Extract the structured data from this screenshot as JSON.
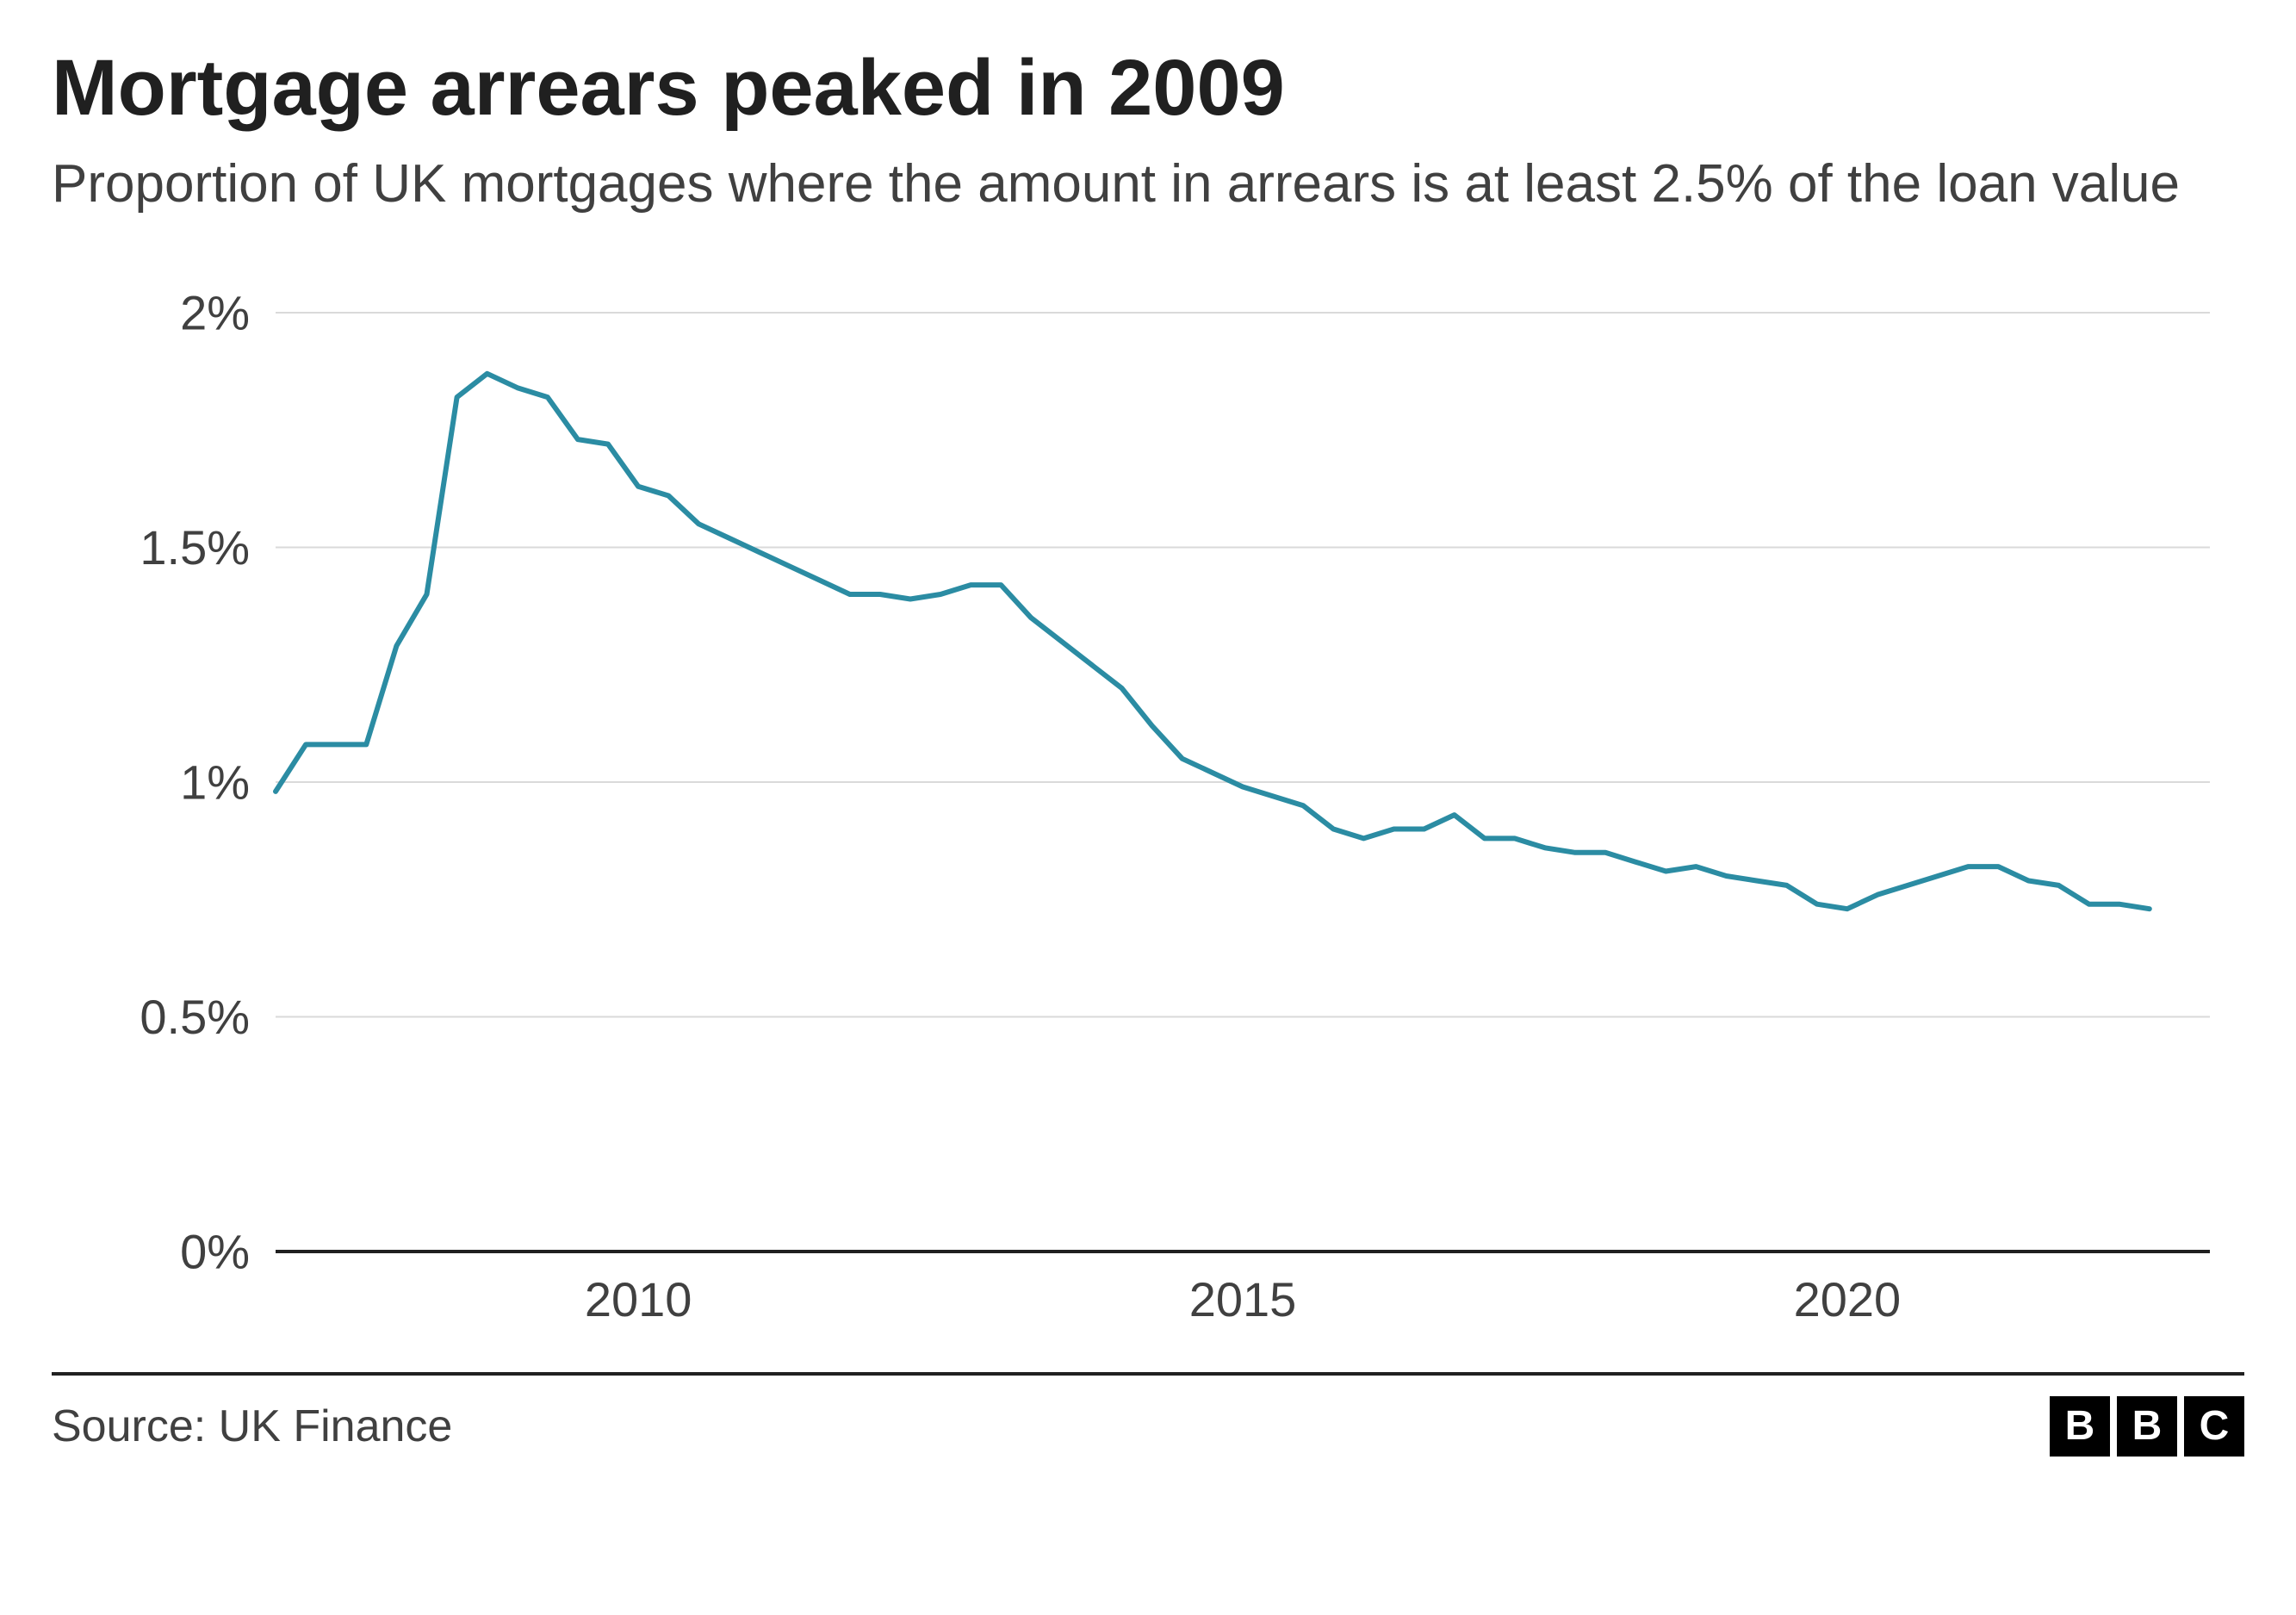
{
  "title": "Mortgage arrears peaked in 2009",
  "subtitle": "Proportion of UK mortgages where the amount in arrears is at least 2.5% of the loan value",
  "source": "Source: UK Finance",
  "logo_letters": [
    "B",
    "B",
    "C"
  ],
  "chart": {
    "type": "line",
    "background_color": "#ffffff",
    "grid_color": "#dadada",
    "axis_color": "#202020",
    "line_color": "#2b8ca3",
    "tick_label_color": "#404040",
    "tick_fontsize": 56,
    "line_width": 6,
    "x_range": [
      2007,
      2023
    ],
    "y_range": [
      0,
      2
    ],
    "y_ticks": [
      {
        "value": 0,
        "label": "0%"
      },
      {
        "value": 0.5,
        "label": "0.5%"
      },
      {
        "value": 1,
        "label": "1%"
      },
      {
        "value": 1.5,
        "label": "1.5%"
      },
      {
        "value": 2,
        "label": "2%"
      }
    ],
    "x_ticks": [
      {
        "value": 2010,
        "label": "2010"
      },
      {
        "value": 2015,
        "label": "2015"
      },
      {
        "value": 2020,
        "label": "2020"
      }
    ],
    "series": [
      {
        "x": 2007.0,
        "y": 0.98
      },
      {
        "x": 2007.25,
        "y": 1.08
      },
      {
        "x": 2007.5,
        "y": 1.08
      },
      {
        "x": 2007.75,
        "y": 1.08
      },
      {
        "x": 2008.0,
        "y": 1.29
      },
      {
        "x": 2008.25,
        "y": 1.4
      },
      {
        "x": 2008.5,
        "y": 1.82
      },
      {
        "x": 2008.75,
        "y": 1.87
      },
      {
        "x": 2009.0,
        "y": 1.84
      },
      {
        "x": 2009.25,
        "y": 1.82
      },
      {
        "x": 2009.5,
        "y": 1.73
      },
      {
        "x": 2009.75,
        "y": 1.72
      },
      {
        "x": 2010.0,
        "y": 1.63
      },
      {
        "x": 2010.25,
        "y": 1.61
      },
      {
        "x": 2010.5,
        "y": 1.55
      },
      {
        "x": 2010.75,
        "y": 1.52
      },
      {
        "x": 2011.0,
        "y": 1.49
      },
      {
        "x": 2011.25,
        "y": 1.46
      },
      {
        "x": 2011.5,
        "y": 1.43
      },
      {
        "x": 2011.75,
        "y": 1.4
      },
      {
        "x": 2012.0,
        "y": 1.4
      },
      {
        "x": 2012.25,
        "y": 1.39
      },
      {
        "x": 2012.5,
        "y": 1.4
      },
      {
        "x": 2012.75,
        "y": 1.42
      },
      {
        "x": 2013.0,
        "y": 1.42
      },
      {
        "x": 2013.25,
        "y": 1.35
      },
      {
        "x": 2013.5,
        "y": 1.3
      },
      {
        "x": 2013.75,
        "y": 1.25
      },
      {
        "x": 2014.0,
        "y": 1.2
      },
      {
        "x": 2014.25,
        "y": 1.12
      },
      {
        "x": 2014.5,
        "y": 1.05
      },
      {
        "x": 2014.75,
        "y": 1.02
      },
      {
        "x": 2015.0,
        "y": 0.99
      },
      {
        "x": 2015.25,
        "y": 0.97
      },
      {
        "x": 2015.5,
        "y": 0.95
      },
      {
        "x": 2015.75,
        "y": 0.9
      },
      {
        "x": 2016.0,
        "y": 0.88
      },
      {
        "x": 2016.25,
        "y": 0.9
      },
      {
        "x": 2016.5,
        "y": 0.9
      },
      {
        "x": 2016.75,
        "y": 0.93
      },
      {
        "x": 2017.0,
        "y": 0.88
      },
      {
        "x": 2017.25,
        "y": 0.88
      },
      {
        "x": 2017.5,
        "y": 0.86
      },
      {
        "x": 2017.75,
        "y": 0.85
      },
      {
        "x": 2018.0,
        "y": 0.85
      },
      {
        "x": 2018.25,
        "y": 0.83
      },
      {
        "x": 2018.5,
        "y": 0.81
      },
      {
        "x": 2018.75,
        "y": 0.82
      },
      {
        "x": 2019.0,
        "y": 0.8
      },
      {
        "x": 2019.25,
        "y": 0.79
      },
      {
        "x": 2019.5,
        "y": 0.78
      },
      {
        "x": 2019.75,
        "y": 0.74
      },
      {
        "x": 2020.0,
        "y": 0.73
      },
      {
        "x": 2020.25,
        "y": 0.76
      },
      {
        "x": 2020.5,
        "y": 0.78
      },
      {
        "x": 2020.75,
        "y": 0.8
      },
      {
        "x": 2021.0,
        "y": 0.82
      },
      {
        "x": 2021.25,
        "y": 0.82
      },
      {
        "x": 2021.5,
        "y": 0.79
      },
      {
        "x": 2021.75,
        "y": 0.78
      },
      {
        "x": 2022.0,
        "y": 0.74
      },
      {
        "x": 2022.25,
        "y": 0.74
      },
      {
        "x": 2022.5,
        "y": 0.73
      }
    ]
  }
}
